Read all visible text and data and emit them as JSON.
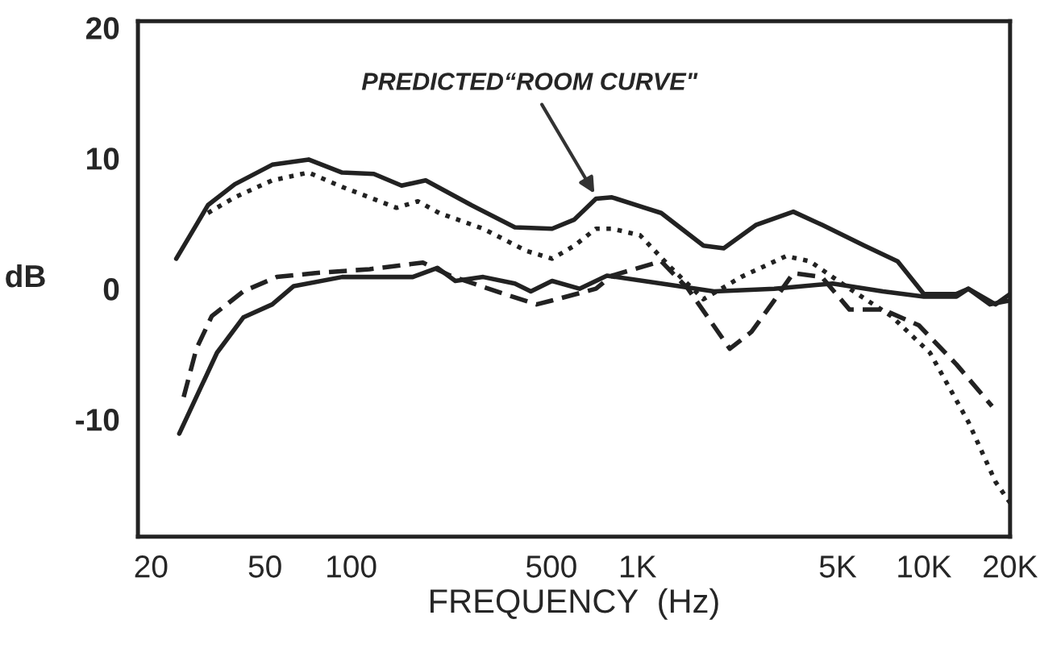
{
  "chart_data": {
    "type": "line",
    "xlabel": "FREQUENCY  (Hz)",
    "ylabel": "dB",
    "log": "x",
    "grid": false,
    "marker": "none",
    "xlim": [
      18,
      20000
    ],
    "ylim": [
      -19,
      20.5
    ],
    "xticks": [
      20,
      50,
      100,
      500,
      {
        "value": 1000,
        "label": "1K"
      },
      {
        "value": 5000,
        "label": "5K"
      },
      {
        "value": 10000,
        "label": "10K"
      },
      {
        "value": 20000,
        "label": "20K"
      }
    ],
    "yticks": [
      -10,
      0,
      10,
      20
    ],
    "annotations": [
      {
        "text": "PREDICTED“ROOM CURVE\"",
        "x": 720,
        "y": 7
      }
    ],
    "series": [
      {
        "color": "#222222",
        "line_style": "solid",
        "x": [
          24.5,
          28.8,
          31.6,
          39.2,
          53,
          71,
          93,
          120,
          150,
          182,
          263,
          373,
          503,
          602,
          716,
          814,
          1210,
          1700,
          2000,
          2600,
          3500,
          4400,
          6200,
          8100,
          10000,
          13000,
          14300,
          17800,
          20000
        ],
        "values": [
          2.3,
          4.9,
          6.4,
          8.0,
          9.5,
          9.9,
          8.9,
          8.8,
          7.9,
          8.3,
          6.4,
          4.7,
          4.6,
          5.3,
          6.9,
          7.0,
          5.8,
          3.3,
          3.1,
          4.9,
          5.9,
          4.9,
          3.3,
          2.1,
          -0.4,
          -0.4,
          0,
          -1.2,
          -0.4
        ]
      },
      {
        "color": "#222222",
        "line_style": "dotted",
        "x": [
          31.6,
          39.2,
          53,
          71,
          93,
          144,
          171,
          203,
          289,
          409,
          503,
          602,
          716,
          814,
          1020,
          1310,
          1700,
          2300,
          3300,
          4000,
          5500,
          7700,
          10500,
          14300,
          17800,
          20000
        ],
        "values": [
          5.8,
          7.0,
          8.3,
          8.9,
          7.8,
          6.2,
          6.7,
          5.8,
          4.6,
          2.9,
          2.3,
          3.3,
          4.6,
          4.6,
          4.1,
          1.6,
          -0.8,
          0.9,
          2.5,
          2.1,
          0,
          -2.1,
          -4.9,
          -10.2,
          -14.8,
          -16.4
        ]
      },
      {
        "color": "#222222",
        "line_style": "dashed",
        "x": [
          26,
          28.8,
          32.6,
          42,
          55,
          75,
          116,
          178,
          222,
          342,
          444,
          503,
          716,
          814,
          1210,
          1500,
          2100,
          2500,
          3000,
          3500,
          4400,
          5500,
          7200,
          9600,
          13000,
          17300
        ],
        "values": [
          -8.3,
          -4.6,
          -2.1,
          -0.2,
          0.9,
          1.2,
          1.5,
          2.0,
          1.0,
          -0.4,
          -1.2,
          -0.9,
          0,
          1.0,
          2.1,
          0,
          -4.6,
          -3.3,
          -0.9,
          1.2,
          0.9,
          -1.6,
          -1.6,
          -2.8,
          -5.8,
          -9.0
        ]
      },
      {
        "color": "#222222",
        "line_style": "solid",
        "x": [
          25.1,
          34,
          42,
          53,
          63,
          93,
          164,
          200,
          231,
          289,
          373,
          424,
          503,
          627,
          782,
          1210,
          1850,
          3000,
          4800,
          7200,
          10000,
          13000,
          14300,
          17000,
          20000
        ],
        "values": [
          -11.1,
          -4.9,
          -2.2,
          -1.2,
          0.2,
          0.9,
          0.9,
          1.6,
          0.6,
          0.9,
          0.4,
          -0.2,
          0.6,
          0,
          1.0,
          0.4,
          -0.2,
          0,
          0.4,
          -0.2,
          -0.6,
          -0.6,
          0,
          -1.2,
          -0.9
        ]
      }
    ]
  }
}
